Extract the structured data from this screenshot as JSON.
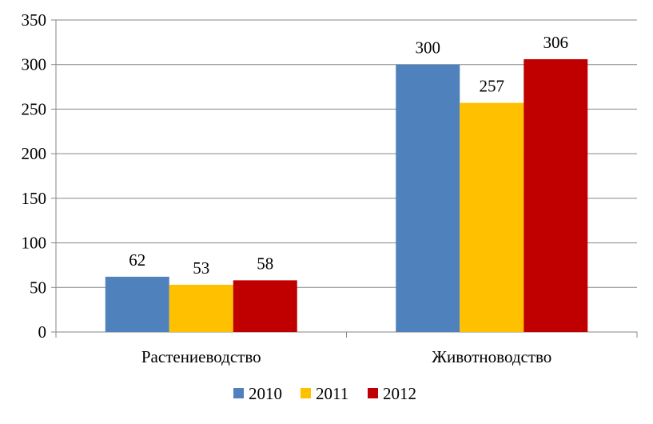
{
  "chart_data": {
    "type": "bar",
    "categories": [
      "Растениеводство",
      "Животноводство"
    ],
    "series": [
      {
        "name": "2010",
        "values": [
          62,
          300
        ],
        "color": "#4f81bd"
      },
      {
        "name": "2011",
        "values": [
          53,
          257
        ],
        "color": "#ffc000"
      },
      {
        "name": "2012",
        "values": [
          58,
          306
        ],
        "color": "#c00000"
      }
    ],
    "ylim": [
      0,
      350
    ],
    "yticks": [
      0,
      50,
      100,
      150,
      200,
      250,
      300,
      350
    ],
    "grid": true,
    "legend": "bottom",
    "data_labels": true
  }
}
